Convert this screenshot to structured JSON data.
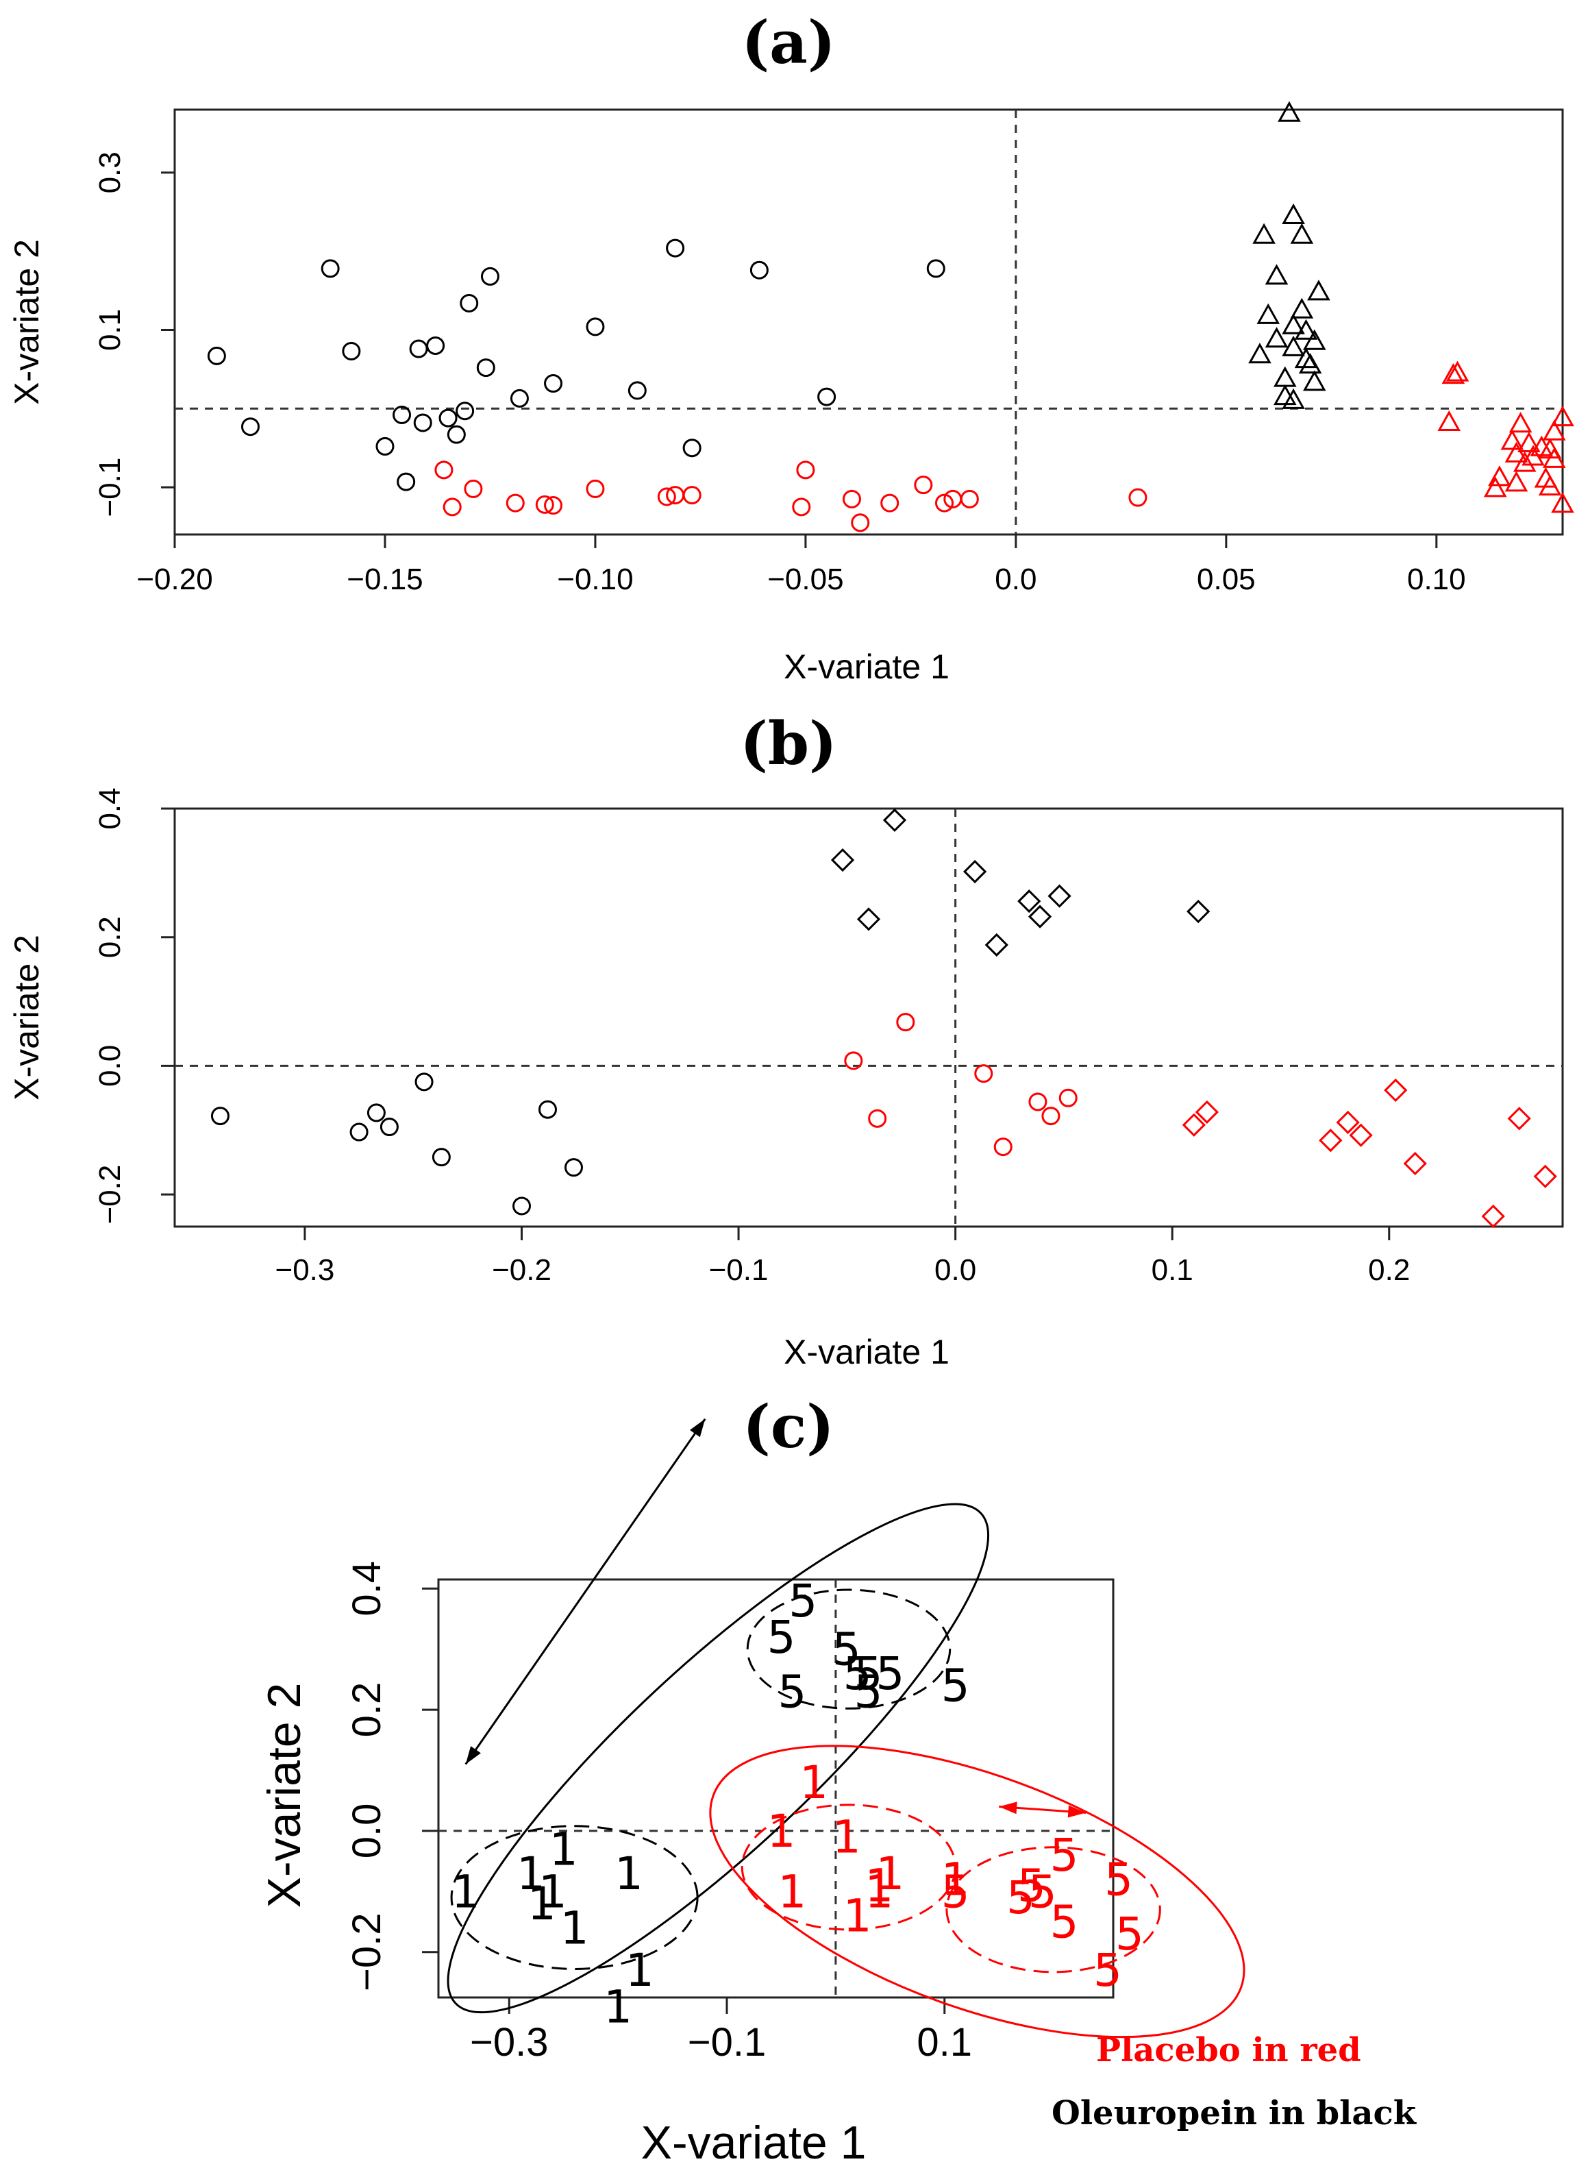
{
  "chart_data": [
    {
      "panel": "(a)",
      "type": "scatter",
      "xlabel": "X-variate 1",
      "ylabel": "X-variate 2",
      "xlim": [
        -0.2,
        0.13
      ],
      "ylim": [
        -0.16,
        0.38
      ],
      "xticks": [
        "-0.20",
        "-0.15",
        "-0.10",
        "-0.05",
        "0.0",
        "0.05",
        "0.10"
      ],
      "yticks": [
        "-0.1",
        "0.1",
        "0.3"
      ],
      "reference_lines": {
        "x": 0,
        "y": 0,
        "style": "dashed"
      },
      "series": [
        {
          "color": "#000000",
          "marker": "circle",
          "points": [
            [
              -0.19,
              0.067
            ],
            [
              -0.182,
              -0.023
            ],
            [
              -0.163,
              0.178
            ],
            [
              -0.158,
              0.073
            ],
            [
              -0.15,
              -0.048
            ],
            [
              -0.146,
              -0.008
            ],
            [
              -0.145,
              -0.093
            ],
            [
              -0.142,
              0.076
            ],
            [
              -0.141,
              -0.018
            ],
            [
              -0.138,
              0.08
            ],
            [
              -0.135,
              -0.012
            ],
            [
              -0.133,
              -0.033
            ],
            [
              -0.131,
              -0.003
            ],
            [
              -0.13,
              0.134
            ],
            [
              -0.126,
              0.052
            ],
            [
              -0.125,
              0.168
            ],
            [
              -0.118,
              0.013
            ],
            [
              -0.11,
              0.032
            ],
            [
              -0.1,
              0.104
            ],
            [
              -0.09,
              0.023
            ],
            [
              -0.081,
              0.204
            ],
            [
              -0.077,
              -0.05
            ],
            [
              -0.061,
              0.176
            ],
            [
              -0.045,
              0.015
            ],
            [
              -0.019,
              0.178
            ]
          ]
        },
        {
          "color": "#ff0000",
          "marker": "circle",
          "points": [
            [
              -0.136,
              -0.078
            ],
            [
              -0.134,
              -0.125
            ],
            [
              -0.129,
              -0.102
            ],
            [
              -0.119,
              -0.12
            ],
            [
              -0.112,
              -0.122
            ],
            [
              -0.11,
              -0.123
            ],
            [
              -0.1,
              -0.102
            ],
            [
              -0.083,
              -0.112
            ],
            [
              -0.081,
              -0.11
            ],
            [
              -0.077,
              -0.11
            ],
            [
              -0.05,
              -0.078
            ],
            [
              -0.051,
              -0.125
            ],
            [
              -0.039,
              -0.115
            ],
            [
              -0.037,
              -0.145
            ],
            [
              -0.03,
              -0.12
            ],
            [
              -0.022,
              -0.097
            ],
            [
              -0.017,
              -0.12
            ],
            [
              -0.015,
              -0.115
            ],
            [
              -0.011,
              -0.115
            ],
            [
              0.029,
              -0.113
            ]
          ]
        },
        {
          "color": "#000000",
          "marker": "triangle",
          "points": [
            [
              0.065,
              0.375
            ],
            [
              0.066,
              0.245
            ],
            [
              0.059,
              0.22
            ],
            [
              0.068,
              0.22
            ],
            [
              0.062,
              0.168
            ],
            [
              0.072,
              0.148
            ],
            [
              0.068,
              0.125
            ],
            [
              0.06,
              0.118
            ],
            [
              0.066,
              0.105
            ],
            [
              0.069,
              0.098
            ],
            [
              0.062,
              0.088
            ],
            [
              0.071,
              0.085
            ],
            [
              0.066,
              0.077
            ],
            [
              0.058,
              0.068
            ],
            [
              0.069,
              0.062
            ],
            [
              0.07,
              0.055
            ],
            [
              0.064,
              0.038
            ],
            [
              0.071,
              0.033
            ],
            [
              0.064,
              0.015
            ],
            [
              0.066,
              0.01
            ]
          ]
        },
        {
          "color": "#ff0000",
          "marker": "triangle",
          "points": [
            [
              0.105,
              0.045
            ],
            [
              0.104,
              0.042
            ],
            [
              0.103,
              -0.018
            ],
            [
              0.13,
              -0.012
            ],
            [
              0.12,
              -0.02
            ],
            [
              0.128,
              -0.03
            ],
            [
              0.118,
              -0.042
            ],
            [
              0.122,
              -0.045
            ],
            [
              0.125,
              -0.05
            ],
            [
              0.127,
              -0.053
            ],
            [
              0.119,
              -0.058
            ],
            [
              0.123,
              -0.062
            ],
            [
              0.128,
              -0.065
            ],
            [
              0.121,
              -0.07
            ],
            [
              0.115,
              -0.088
            ],
            [
              0.126,
              -0.09
            ],
            [
              0.119,
              -0.095
            ],
            [
              0.114,
              -0.102
            ],
            [
              0.127,
              -0.1
            ],
            [
              0.13,
              -0.122
            ]
          ]
        }
      ]
    },
    {
      "panel": "(b)",
      "type": "scatter",
      "xlabel": "X-variate 1",
      "ylabel": "X-variate 2",
      "xlim": [
        -0.36,
        0.28
      ],
      "ylim": [
        -0.25,
        0.4
      ],
      "xticks": [
        "-0.3",
        "-0.2",
        "-0.1",
        "0.0",
        "0.1",
        "0.2"
      ],
      "yticks": [
        "-0.2",
        "0.0",
        "0.2",
        "0.4"
      ],
      "reference_lines": {
        "x": 0,
        "y": 0,
        "style": "dashed"
      },
      "series": [
        {
          "color": "#000000",
          "marker": "circle",
          "points": [
            [
              -0.339,
              -0.078
            ],
            [
              -0.275,
              -0.103
            ],
            [
              -0.267,
              -0.073
            ],
            [
              -0.261,
              -0.095
            ],
            [
              -0.245,
              -0.025
            ],
            [
              -0.237,
              -0.142
            ],
            [
              -0.2,
              -0.218
            ],
            [
              -0.188,
              -0.068
            ],
            [
              -0.176,
              -0.158
            ]
          ]
        },
        {
          "color": "#000000",
          "marker": "diamond",
          "points": [
            [
              -0.028,
              0.382
            ],
            [
              -0.052,
              0.32
            ],
            [
              -0.04,
              0.228
            ],
            [
              0.009,
              0.302
            ],
            [
              0.019,
              0.188
            ],
            [
              0.034,
              0.256
            ],
            [
              0.039,
              0.232
            ],
            [
              0.048,
              0.264
            ],
            [
              0.112,
              0.24
            ]
          ]
        },
        {
          "color": "#ff0000",
          "marker": "circle",
          "points": [
            [
              -0.023,
              0.068
            ],
            [
              -0.047,
              0.008
            ],
            [
              -0.036,
              -0.082
            ],
            [
              0.013,
              -0.012
            ],
            [
              0.022,
              -0.126
            ],
            [
              0.038,
              -0.056
            ],
            [
              0.044,
              -0.078
            ],
            [
              0.052,
              -0.05
            ]
          ]
        },
        {
          "color": "#ff0000",
          "marker": "diamond",
          "points": [
            [
              0.11,
              -0.092
            ],
            [
              0.116,
              -0.072
            ],
            [
              0.173,
              -0.116
            ],
            [
              0.181,
              -0.088
            ],
            [
              0.187,
              -0.108
            ],
            [
              0.203,
              -0.038
            ],
            [
              0.212,
              -0.152
            ],
            [
              0.248,
              -0.234
            ],
            [
              0.26,
              -0.082
            ],
            [
              0.272,
              -0.172
            ]
          ]
        }
      ]
    },
    {
      "panel": "(c)",
      "type": "scatter",
      "xlabel": "X-variate 1",
      "ylabel": "X-variate 2",
      "xlim": [
        -0.365,
        0.255
      ],
      "ylim": [
        -0.275,
        0.415
      ],
      "xticks": [
        "-0.3",
        "-0.1",
        "0.1"
      ],
      "yticks": [
        "-0.2",
        "0.0",
        "0.2",
        "0.4"
      ],
      "reference_lines": {
        "x": 0,
        "y": 0,
        "style": "dashed"
      },
      "series": [
        {
          "color": "#000000",
          "marker": "1",
          "points": [
            [
              -0.34,
              -0.1
            ],
            [
              -0.28,
              -0.07
            ],
            [
              -0.27,
              -0.12
            ],
            [
              -0.26,
              -0.1
            ],
            [
              -0.25,
              -0.03
            ],
            [
              -0.24,
              -0.16
            ],
            [
              -0.19,
              -0.07
            ],
            [
              -0.18,
              -0.23
            ],
            [
              -0.2,
              -0.29
            ]
          ]
        },
        {
          "color": "#000000",
          "marker": "5",
          "points": [
            [
              -0.03,
              0.38
            ],
            [
              -0.05,
              0.32
            ],
            [
              -0.04,
              0.23
            ],
            [
              0.01,
              0.3
            ],
            [
              0.02,
              0.26
            ],
            [
              0.03,
              0.26
            ],
            [
              0.03,
              0.23
            ],
            [
              0.05,
              0.26
            ],
            [
              0.11,
              0.24
            ]
          ]
        },
        {
          "color": "#ff0000",
          "marker": "1",
          "points": [
            [
              -0.02,
              0.08
            ],
            [
              -0.05,
              0.0
            ],
            [
              0.01,
              -0.01
            ],
            [
              -0.04,
              -0.1
            ],
            [
              0.05,
              -0.07
            ],
            [
              0.04,
              -0.09
            ],
            [
              0.04,
              -0.1
            ],
            [
              0.02,
              -0.14
            ],
            [
              0.11,
              -0.08
            ]
          ]
        },
        {
          "color": "#ff0000",
          "marker": "5",
          "points": [
            [
              0.11,
              -0.1
            ],
            [
              0.17,
              -0.11
            ],
            [
              0.18,
              -0.09
            ],
            [
              0.19,
              -0.1
            ],
            [
              0.21,
              -0.04
            ],
            [
              0.21,
              -0.15
            ],
            [
              0.26,
              -0.08
            ],
            [
              0.27,
              -0.17
            ],
            [
              0.25,
              -0.23
            ]
          ]
        }
      ],
      "ellipses": [
        {
          "color": "#000000",
          "dash": "solid",
          "cx": -0.108,
          "cy": 0.12,
          "rx": 0.33,
          "ry": 0.152,
          "angle": 43
        },
        {
          "color": "#000000",
          "dash": "dashed",
          "cx": -0.24,
          "cy": -0.11,
          "rx": 0.113,
          "ry": 0.118,
          "angle": 0
        },
        {
          "color": "#000000",
          "dash": "dashed",
          "cx": 0.012,
          "cy": 0.3,
          "rx": 0.093,
          "ry": 0.098,
          "angle": 0
        },
        {
          "color": "#ff0000",
          "dash": "solid",
          "cx": 0.13,
          "cy": -0.1,
          "rx": 0.258,
          "ry": 0.192,
          "angle": -20
        },
        {
          "color": "#ff0000",
          "dash": "dashed",
          "cx": 0.012,
          "cy": -0.06,
          "rx": 0.098,
          "ry": 0.103,
          "angle": 0
        },
        {
          "color": "#ff0000",
          "dash": "dashed",
          "cx": 0.2,
          "cy": -0.13,
          "rx": 0.098,
          "ry": 0.103,
          "angle": 0
        }
      ],
      "arrows": [
        {
          "color": "#000000",
          "from": [
            -0.12,
            0.68
          ],
          "to": [
            -0.34,
            0.11
          ]
        },
        {
          "color": "#ff0000",
          "from": [
            0.15,
            0.04
          ],
          "to": [
            0.23,
            0.03
          ]
        }
      ],
      "legend": [
        "Placebo in red",
        "Oleuropein in black"
      ],
      "legend_colors": [
        "#ff0000",
        "#000000"
      ]
    }
  ]
}
